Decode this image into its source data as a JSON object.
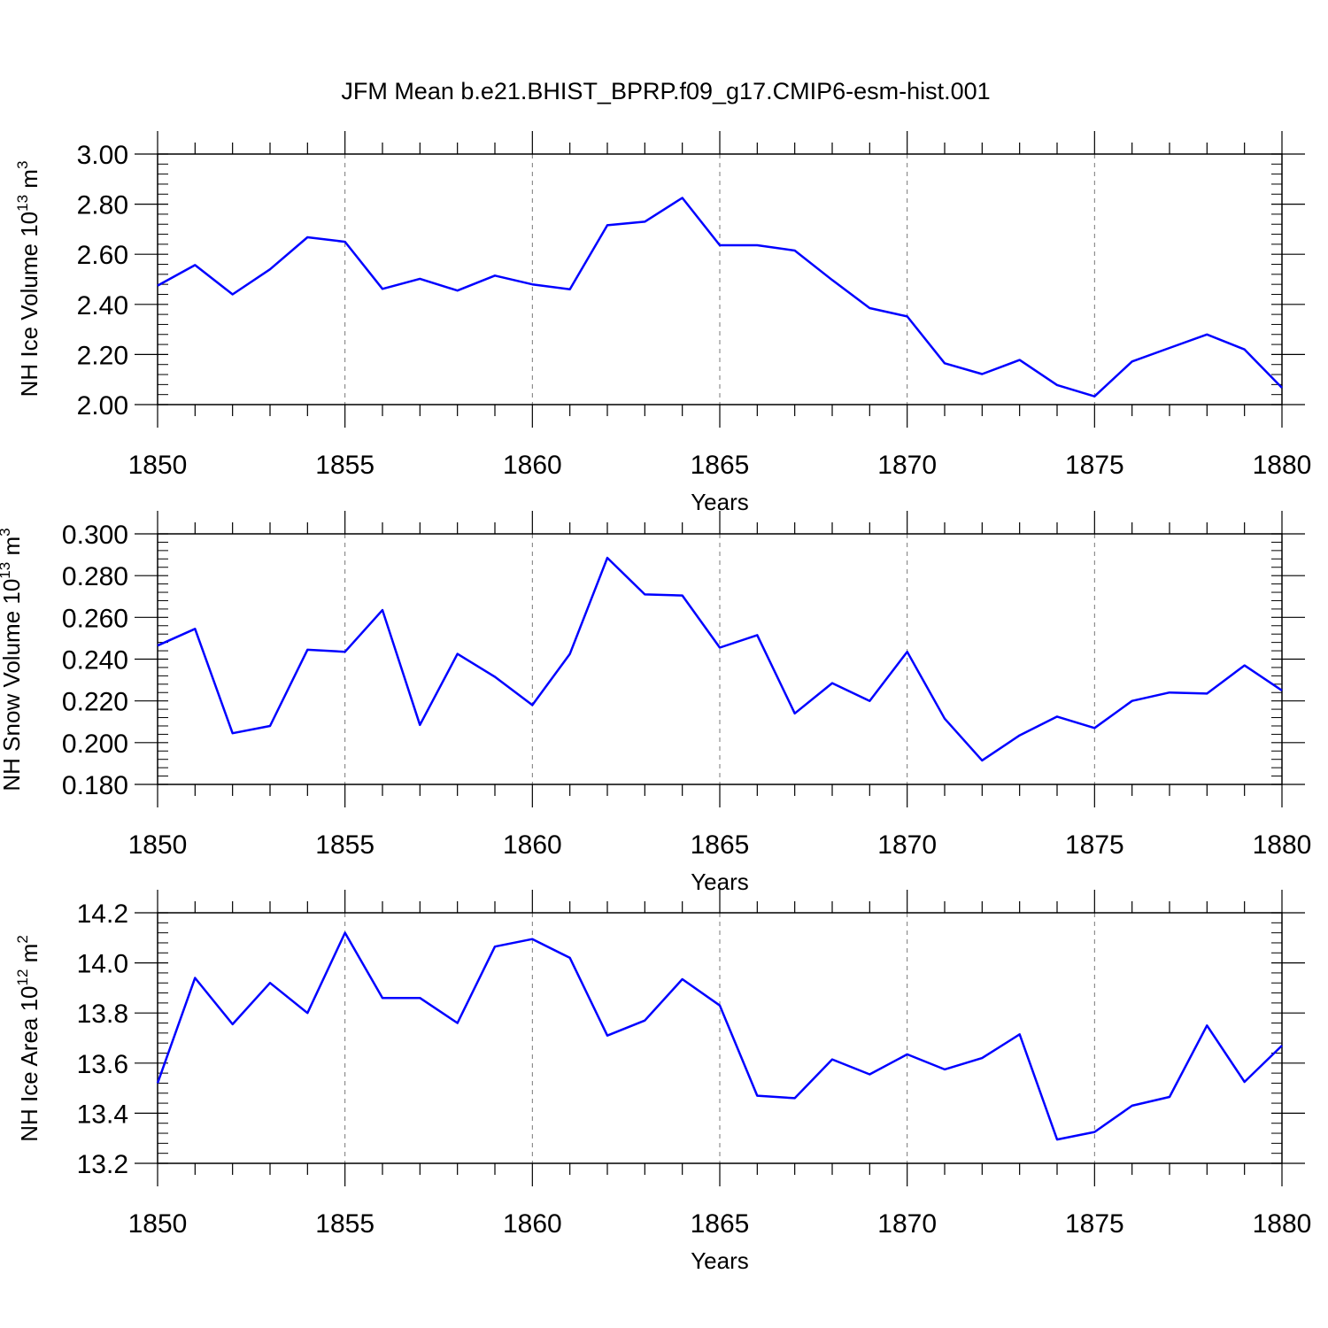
{
  "figure": {
    "title": "JFM Mean b.e21.BHIST_BPRP.f09_g17.CMIP6-esm-hist.001"
  },
  "chart_data": [
    {
      "type": "line",
      "title": "JFM Mean b.e21.BHIST_BPRP.f09_g17.CMIP6-esm-hist.001",
      "xlabel": "Years",
      "ylabel": "NH Ice Volume 10",
      "ylabel_exp": "13",
      "ylabel_unit": " m",
      "ylabel_unit_exp": "3",
      "xlim": [
        1850,
        1880
      ],
      "ylim": [
        2.0,
        3.0
      ],
      "xticks": [
        "1850",
        "1855",
        "1860",
        "1865",
        "1870",
        "1875",
        "1880"
      ],
      "xtick_values": [
        1850,
        1855,
        1860,
        1865,
        1870,
        1875,
        1880
      ],
      "yticks": [
        "2.00",
        "2.20",
        "2.40",
        "2.60",
        "2.80",
        "3.00"
      ],
      "ytick_values": [
        2.0,
        2.2,
        2.4,
        2.6,
        2.8,
        3.0
      ],
      "y_minor_step": 0.04,
      "grid": "vertical dashed at major x ticks",
      "line_color": "#0000ff",
      "x": [
        1850,
        1851,
        1852,
        1853,
        1854,
        1855,
        1856,
        1857,
        1858,
        1859,
        1860,
        1861,
        1862,
        1863,
        1864,
        1865,
        1866,
        1867,
        1868,
        1869,
        1870,
        1871,
        1872,
        1873,
        1874,
        1875,
        1876,
        1877,
        1878,
        1879,
        1880
      ],
      "values": [
        2.475,
        2.557,
        2.44,
        2.54,
        2.668,
        2.65,
        2.462,
        2.502,
        2.455,
        2.515,
        2.48,
        2.46,
        2.716,
        2.73,
        2.825,
        2.636,
        2.636,
        2.615,
        2.497,
        2.385,
        2.352,
        2.165,
        2.122,
        2.178,
        2.078,
        2.033,
        2.172,
        2.226,
        2.28,
        2.22,
        2.067
      ]
    },
    {
      "type": "line",
      "xlabel": "Years",
      "ylabel": "NH Snow Volume 10",
      "ylabel_exp": "13",
      "ylabel_unit": " m",
      "ylabel_unit_exp": "3",
      "xlim": [
        1850,
        1880
      ],
      "ylim": [
        0.18,
        0.3
      ],
      "xticks": [
        "1850",
        "1855",
        "1860",
        "1865",
        "1870",
        "1875",
        "1880"
      ],
      "xtick_values": [
        1850,
        1855,
        1860,
        1865,
        1870,
        1875,
        1880
      ],
      "yticks": [
        "0.180",
        "0.200",
        "0.220",
        "0.240",
        "0.260",
        "0.280",
        "0.300"
      ],
      "ytick_values": [
        0.18,
        0.2,
        0.22,
        0.24,
        0.26,
        0.28,
        0.3
      ],
      "y_minor_step": 0.004,
      "grid": "vertical dashed at major x ticks",
      "line_color": "#0000ff",
      "x": [
        1850,
        1851,
        1852,
        1853,
        1854,
        1855,
        1856,
        1857,
        1858,
        1859,
        1860,
        1861,
        1862,
        1863,
        1864,
        1865,
        1866,
        1867,
        1868,
        1869,
        1870,
        1871,
        1872,
        1873,
        1874,
        1875,
        1876,
        1877,
        1878,
        1879,
        1880
      ],
      "values": [
        0.2465,
        0.2545,
        0.2045,
        0.208,
        0.2445,
        0.2435,
        0.2635,
        0.2085,
        0.2425,
        0.2315,
        0.218,
        0.2425,
        0.2885,
        0.271,
        0.2705,
        0.2455,
        0.2515,
        0.214,
        0.2285,
        0.22,
        0.2435,
        0.2115,
        0.1915,
        0.2035,
        0.2125,
        0.207,
        0.22,
        0.224,
        0.2235,
        0.237,
        0.225
      ]
    },
    {
      "type": "line",
      "xlabel": "Years",
      "ylabel": "NH Ice Area 10",
      "ylabel_exp": "12",
      "ylabel_unit": " m",
      "ylabel_unit_exp": "2",
      "xlim": [
        1850,
        1880
      ],
      "ylim": [
        13.2,
        14.2
      ],
      "xticks": [
        "1850",
        "1855",
        "1860",
        "1865",
        "1870",
        "1875",
        "1880"
      ],
      "xtick_values": [
        1850,
        1855,
        1860,
        1865,
        1870,
        1875,
        1880
      ],
      "yticks": [
        "13.2",
        "13.4",
        "13.6",
        "13.8",
        "14.0",
        "14.2"
      ],
      "ytick_values": [
        13.2,
        13.4,
        13.6,
        13.8,
        14.0,
        14.2
      ],
      "y_minor_step": 0.04,
      "grid": "vertical dashed at major x ticks",
      "line_color": "#0000ff",
      "x": [
        1850,
        1851,
        1852,
        1853,
        1854,
        1855,
        1856,
        1857,
        1858,
        1859,
        1860,
        1861,
        1862,
        1863,
        1864,
        1865,
        1866,
        1867,
        1868,
        1869,
        1870,
        1871,
        1872,
        1873,
        1874,
        1875,
        1876,
        1877,
        1878,
        1879,
        1880
      ],
      "values": [
        13.52,
        13.94,
        13.755,
        13.92,
        13.8,
        14.12,
        13.86,
        13.86,
        13.76,
        14.065,
        14.095,
        14.02,
        13.71,
        13.77,
        13.935,
        13.83,
        13.47,
        13.46,
        13.615,
        13.555,
        13.635,
        13.575,
        13.62,
        13.715,
        13.295,
        13.325,
        13.43,
        13.465,
        13.75,
        13.525,
        13.67
      ]
    }
  ]
}
